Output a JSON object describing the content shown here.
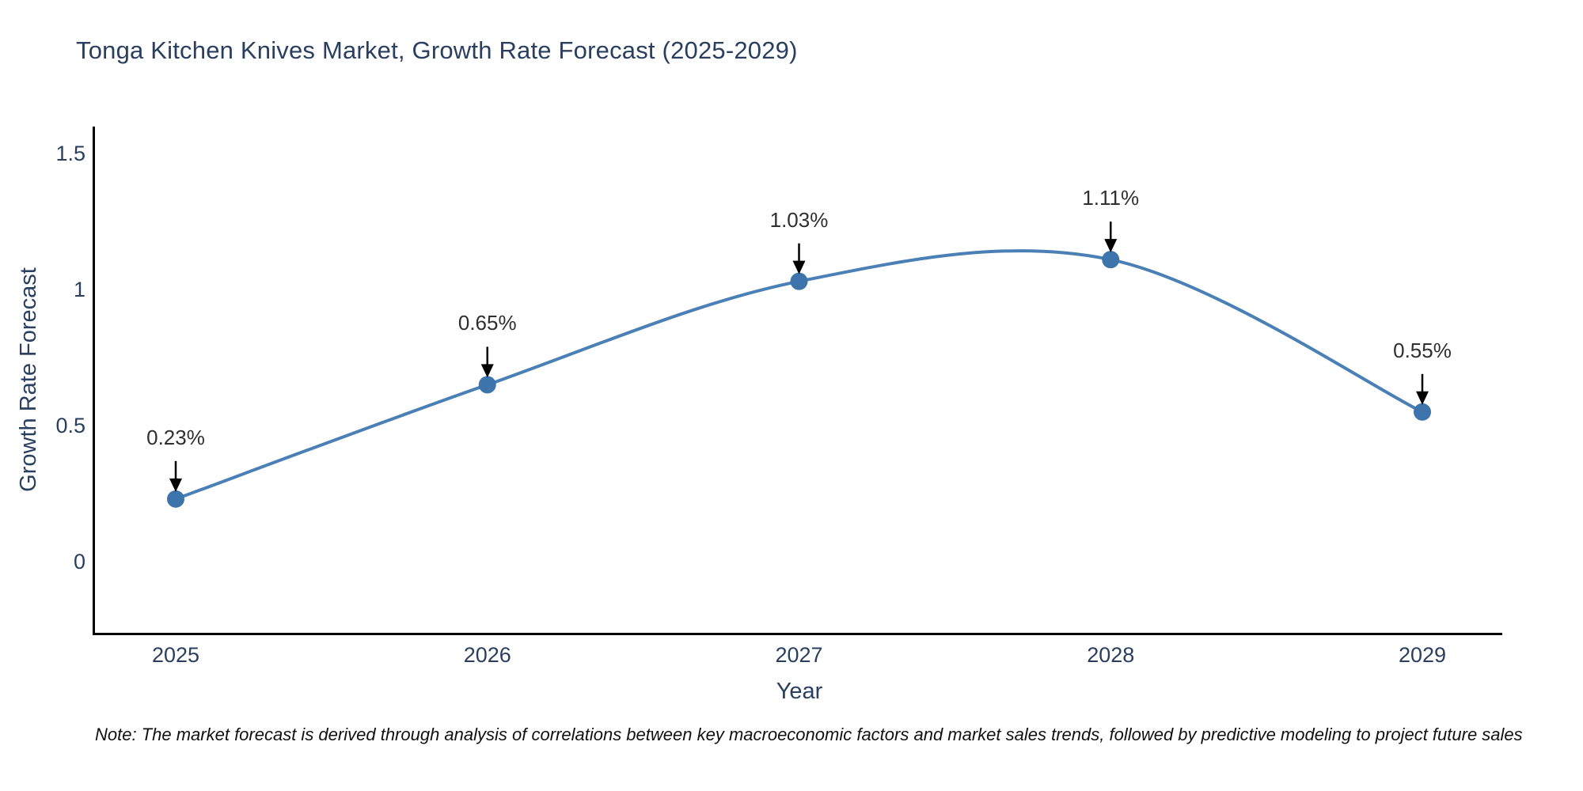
{
  "title": "Tonga Kitchen Knives Market, Growth Rate Forecast (2025-2029)",
  "note": "Note: The market forecast is derived through analysis of correlations between key macroeconomic factors and market sales trends, followed by predictive modeling to project future sales",
  "chart_data": {
    "type": "line",
    "title": "Tonga Kitchen Knives Market, Growth Rate Forecast (2025-2029)",
    "x": [
      2025,
      2026,
      2027,
      2028,
      2029
    ],
    "values": [
      0.23,
      0.65,
      1.03,
      1.11,
      0.55
    ],
    "point_labels": [
      "0.23%",
      "0.65%",
      "1.03%",
      "1.11%",
      "0.55%"
    ],
    "series_name": "Growth Rate Forecast",
    "xlabel": "Year",
    "ylabel": "Growth Rate Forecast",
    "yticks": [
      0,
      0.5,
      1,
      1.5
    ],
    "ylim": [
      -0.26,
      1.6
    ],
    "line_shape": "spline",
    "grid": "off",
    "legend": "none",
    "colors": {
      "line": "#4a80b5",
      "marker": "#3c74ab",
      "axis": "#000000",
      "arrow": "#000000",
      "text": "#2a3f5f",
      "annotation_text": "#2f2f2f",
      "background": "#ffffff"
    }
  }
}
